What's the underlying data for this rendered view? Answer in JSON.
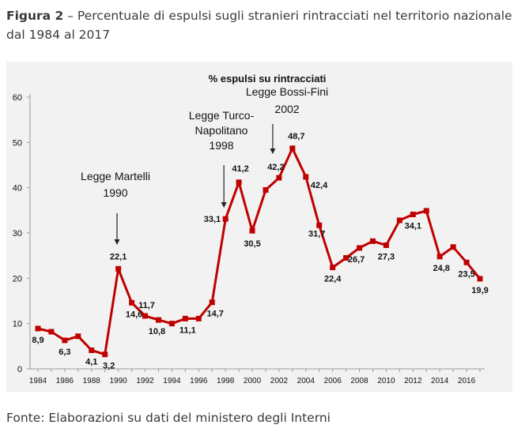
{
  "figure": {
    "label": "Figura 2",
    "caption": " – Percentuale di espulsi sugli stranieri rintracciati nel territorio nazionale dal 1984 al 2017",
    "source": "Fonte: Elaborazioni su dati del ministero degli Interni"
  },
  "colors": {
    "line": "#c00000",
    "panel": "#f2f2f2",
    "text": "#111111"
  },
  "chart_data": {
    "type": "line",
    "title": "% espulsi su rintracciati",
    "xlabel": "",
    "ylabel": "",
    "ylim": [
      0,
      60
    ],
    "yticks": [
      0,
      10,
      20,
      30,
      40,
      50,
      60
    ],
    "xlim": [
      1984,
      2017
    ],
    "xticks": [
      1984,
      1986,
      1988,
      1990,
      1992,
      1994,
      1996,
      1998,
      2000,
      2002,
      2004,
      2006,
      2008,
      2010,
      2012,
      2014,
      2016
    ],
    "grid": false,
    "legend": "none",
    "series": [
      {
        "name": "% espulsi su rintracciati",
        "x": [
          1984,
          1985,
          1986,
          1987,
          1988,
          1989,
          1990,
          1991,
          1992,
          1993,
          1994,
          1995,
          1996,
          1997,
          1998,
          1999,
          2000,
          2001,
          2002,
          2003,
          2004,
          2005,
          2006,
          2007,
          2008,
          2009,
          2010,
          2011,
          2012,
          2013,
          2014,
          2015,
          2016,
          2017
        ],
        "y": [
          8.9,
          8.2,
          6.3,
          7.2,
          4.1,
          3.2,
          22.1,
          14.6,
          11.7,
          10.8,
          10.0,
          11.1,
          11.1,
          14.7,
          33.1,
          41.2,
          30.5,
          39.5,
          42.2,
          48.7,
          42.4,
          31.7,
          22.4,
          24.5,
          26.7,
          28.2,
          27.3,
          32.8,
          34.1,
          34.9,
          24.8,
          26.9,
          23.5,
          19.9
        ]
      }
    ],
    "data_labels": [
      {
        "year": 1984,
        "text": "8,9"
      },
      {
        "year": 1986,
        "text": "6,3"
      },
      {
        "year": 1988,
        "text": "4,1"
      },
      {
        "year": 1989,
        "text": "3,2"
      },
      {
        "year": 1990,
        "text": "22,1"
      },
      {
        "year": 1991,
        "text": "14,6"
      },
      {
        "year": 1992,
        "text": "11,7"
      },
      {
        "year": 1993,
        "text": "10,8"
      },
      {
        "year": 1995,
        "text": "11,1"
      },
      {
        "year": 1997,
        "text": "14,7"
      },
      {
        "year": 1998,
        "text": "33,1"
      },
      {
        "year": 1999,
        "text": "41,2"
      },
      {
        "year": 2000,
        "text": "30,5"
      },
      {
        "year": 2002,
        "text": "42,2"
      },
      {
        "year": 2003,
        "text": "48,7"
      },
      {
        "year": 2004,
        "text": "42,4"
      },
      {
        "year": 2005,
        "text": "31,7"
      },
      {
        "year": 2006,
        "text": "22,4"
      },
      {
        "year": 2008,
        "text": "26,7"
      },
      {
        "year": 2010,
        "text": "27,3"
      },
      {
        "year": 2012,
        "text": "34,1"
      },
      {
        "year": 2014,
        "text": "24,8"
      },
      {
        "year": 2016,
        "text": "23,5"
      },
      {
        "year": 2017,
        "text": "19,9"
      }
    ],
    "annotations": [
      {
        "law": "Legge Martelli",
        "year_text": "1990",
        "year": 1990
      },
      {
        "law": "Legge Turco-Napolitano",
        "year_text": "1998",
        "year": 1998
      },
      {
        "law": "Legge Bossi-Fini",
        "year_text": "2002",
        "year": 2002
      }
    ]
  }
}
